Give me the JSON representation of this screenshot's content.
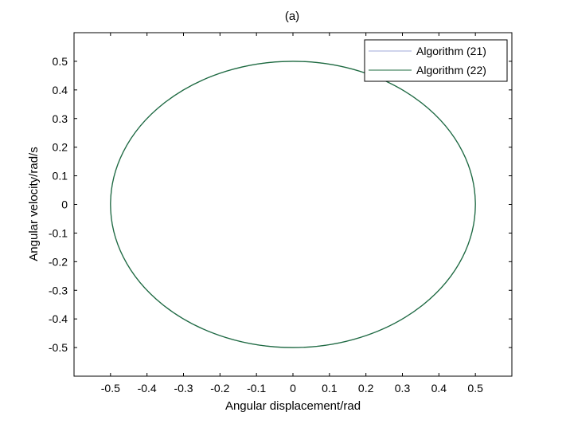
{
  "chart_data": {
    "type": "line",
    "title": "(a)",
    "xlabel": "Angular displacement/rad",
    "ylabel": "Angular velocity/rad/s",
    "xlim": [
      -0.6,
      0.6
    ],
    "ylim": [
      -0.6,
      0.6
    ],
    "xticks": [
      -0.5,
      -0.4,
      -0.3,
      -0.2,
      -0.1,
      0,
      0.1,
      0.2,
      0.3,
      0.4,
      0.5
    ],
    "xtick_labels": [
      "-0.5",
      "-0.4",
      "-0.3",
      "-0.2",
      "-0.1",
      "0",
      "0.1",
      "0.2",
      "0.3",
      "0.4",
      "0.5"
    ],
    "yticks": [
      0.5,
      0.4,
      0.3,
      0.2,
      0.1,
      0,
      -0.1,
      -0.2,
      -0.3,
      -0.4,
      -0.5
    ],
    "ytick_labels": [
      "0.5",
      "0.4",
      "0.3",
      "0.2",
      "0.1",
      "0",
      "-0.1",
      "-0.2",
      "-0.3",
      "-0.4",
      "-0.5"
    ],
    "grid": false,
    "legend_position": "top-right",
    "series": [
      {
        "name": "Algorithm (21)",
        "color": "#9fa8da",
        "shape": "ellipse",
        "center": [
          0,
          0
        ],
        "x_semi_axis": 0.5,
        "y_semi_axis": 0.5
      },
      {
        "name": "Algorithm (22)",
        "color": "#1e6b3f",
        "shape": "ellipse",
        "center": [
          0,
          0
        ],
        "x_semi_axis": 0.5,
        "y_semi_axis": 0.5
      }
    ]
  }
}
